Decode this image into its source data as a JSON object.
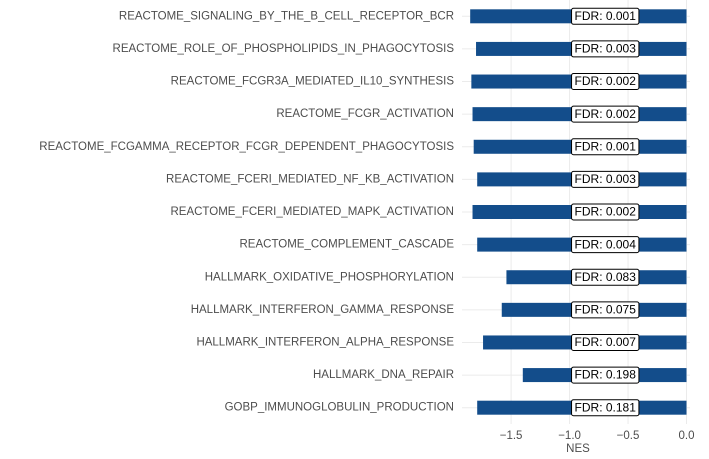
{
  "chart_data": {
    "type": "bar",
    "horizontal": true,
    "xlabel": "NES",
    "categories": [
      "REACTOME_SIGNALING_BY_THE_B_CELL_RECEPTOR_BCR",
      "REACTOME_ROLE_OF_PHOSPHOLIPIDS_IN_PHAGOCYTOSIS",
      "REACTOME_FCGR3A_MEDIATED_IL10_SYNTHESIS",
      "REACTOME_FCGR_ACTIVATION",
      "REACTOME_FCGAMMA_RECEPTOR_FCGR_DEPENDENT_PHAGOCYTOSIS",
      "REACTOME_FCERI_MEDIATED_NF_KB_ACTIVATION",
      "REACTOME_FCERI_MEDIATED_MAPK_ACTIVATION",
      "REACTOME_COMPLEMENT_CASCADE",
      "HALLMARK_OXIDATIVE_PHOSPHORYLATION",
      "HALLMARK_INTERFERON_GAMMA_RESPONSE",
      "HALLMARK_INTERFERON_ALPHA_RESPONSE",
      "HALLMARK_DNA_REPAIR",
      "GOBP_IMMUNOGLOBULIN_PRODUCTION"
    ],
    "values": [
      -1.85,
      -1.8,
      -1.84,
      -1.83,
      -1.82,
      -1.79,
      -1.83,
      -1.79,
      -1.54,
      -1.58,
      -1.74,
      -1.4,
      -1.79
    ],
    "annotations": [
      "FDR: 0.001",
      "FDR: 0.003",
      "FDR: 0.002",
      "FDR: 0.002",
      "FDR: 0.001",
      "FDR: 0.003",
      "FDR: 0.002",
      "FDR: 0.004",
      "FDR: 0.083",
      "FDR: 0.075",
      "FDR: 0.007",
      "FDR: 0.198",
      "FDR: 0.181"
    ],
    "color": "#134d8b",
    "xlim": [
      -1.92,
      0.03
    ],
    "xticks": [
      {
        "value": -1.5,
        "label": "−1.5"
      },
      {
        "value": -1.0,
        "label": "−1.0"
      },
      {
        "value": -0.5,
        "label": "−0.5"
      },
      {
        "value": 0,
        "label": "0.0"
      }
    ],
    "grid": true
  }
}
